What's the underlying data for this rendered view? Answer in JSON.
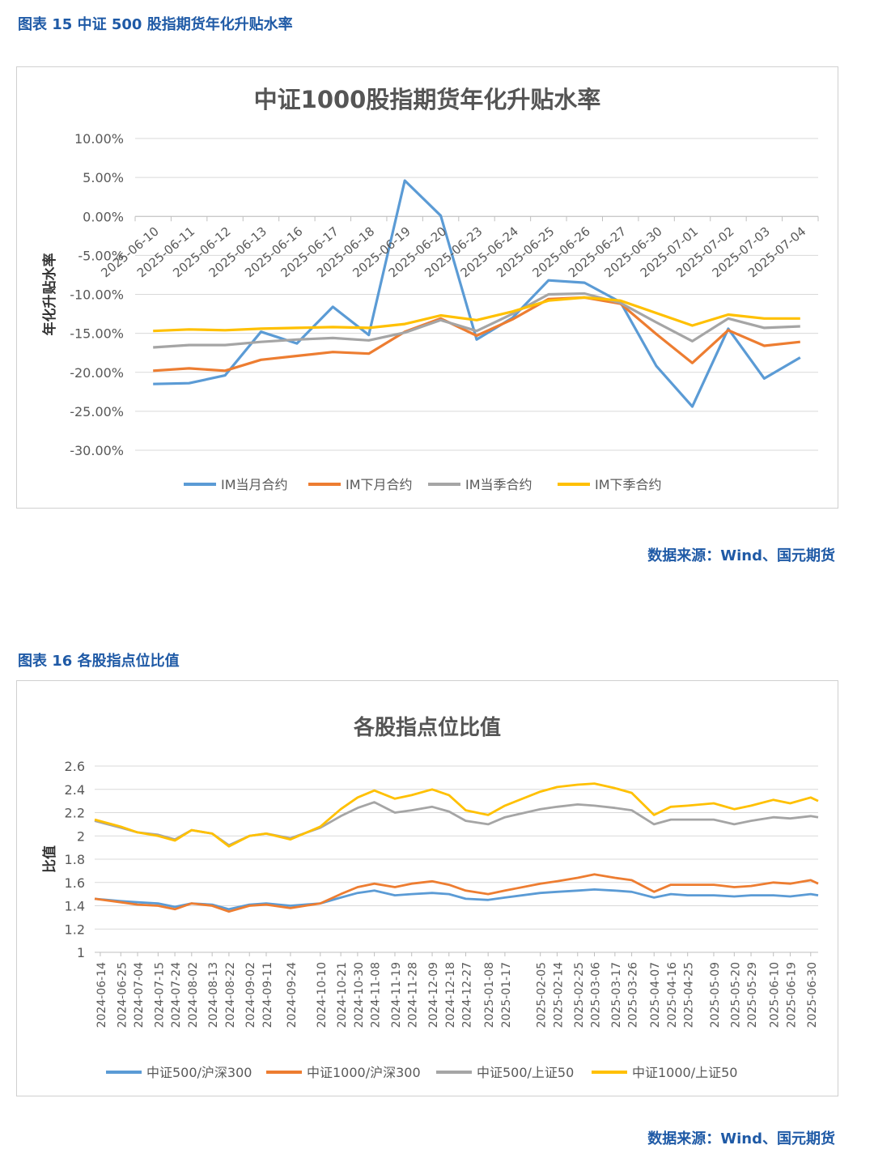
{
  "figure15": {
    "caption": "图表 15  中证 500 股指期货年化升贴水率",
    "source": "数据来源：Wind、国元期货"
  },
  "figure16": {
    "caption": "图表 16  各股指点位比值",
    "source": "数据来源：Wind、国元期货"
  },
  "chart_data": [
    {
      "type": "line",
      "title": "中证1000股指期货年化升贴水率",
      "ylabel": "年化升贴水率",
      "ylim": [
        -30,
        10
      ],
      "yticks": [
        "10.00%",
        "5.00%",
        "0.00%",
        "-5.00%",
        "-10.00%",
        "-15.00%",
        "-20.00%",
        "-25.00%",
        "-30.00%"
      ],
      "categories": [
        "2025-06-10",
        "2025-06-11",
        "2025-06-12",
        "2025-06-13",
        "2025-06-16",
        "2025-06-17",
        "2025-06-18",
        "2025-06-19",
        "2025-06-20",
        "2025-06-23",
        "2025-06-24",
        "2025-06-25",
        "2025-06-26",
        "2025-06-27",
        "2025-06-30",
        "2025-07-01",
        "2025-07-02",
        "2025-07-03",
        "2025-07-04"
      ],
      "legend_position": "bottom",
      "grid": true,
      "series": [
        {
          "name": "IM当月合约",
          "color": "#5b9bd5",
          "values": [
            -21.5,
            -21.4,
            -20.4,
            -14.8,
            -16.3,
            -11.6,
            -15.2,
            4.6,
            0.1,
            -15.8,
            -13.0,
            -8.2,
            -8.5,
            -11.0,
            -19.2,
            -24.4,
            -14.4,
            -20.8,
            -18.1
          ]
        },
        {
          "name": "IM下月合约",
          "color": "#ed7d31",
          "values": [
            -19.8,
            -19.5,
            -19.8,
            -18.4,
            -17.9,
            -17.4,
            -17.6,
            -14.8,
            -13.1,
            -15.3,
            -13.2,
            -10.6,
            -10.4,
            -11.2,
            -15.1,
            -18.8,
            -14.6,
            -16.6,
            -16.1
          ]
        },
        {
          "name": "IM当季合约",
          "color": "#a5a5a5",
          "values": [
            -16.8,
            -16.5,
            -16.5,
            -16.1,
            -15.8,
            -15.6,
            -15.9,
            -14.9,
            -13.3,
            -14.7,
            -12.5,
            -10.0,
            -9.9,
            -11.1,
            -13.6,
            -16.0,
            -13.1,
            -14.3,
            -14.1
          ]
        },
        {
          "name": "IM下季合约",
          "color": "#ffc000",
          "values": [
            -14.7,
            -14.5,
            -14.6,
            -14.4,
            -14.3,
            -14.2,
            -14.3,
            -13.8,
            -12.7,
            -13.3,
            -12.2,
            -10.8,
            -10.4,
            -10.8,
            -12.4,
            -14.0,
            -12.6,
            -13.1,
            -13.1
          ]
        }
      ]
    },
    {
      "type": "line",
      "title": "各股指点位比值",
      "ylabel": "比值",
      "ylim": [
        1,
        2.6
      ],
      "yticks": [
        "2.6",
        "2.4",
        "2.2",
        "2",
        "1.8",
        "1.6",
        "1.4",
        "1.2",
        "1"
      ],
      "x_start": "2024-06-11",
      "x_end": "2025-07-04",
      "xticks": [
        "2024-06-14",
        "2024-06-25",
        "2024-07-04",
        "2024-07-15",
        "2024-07-24",
        "2024-08-02",
        "2024-08-13",
        "2024-08-22",
        "2024-09-02",
        "2024-09-11",
        "2024-09-24",
        "2024-10-10",
        "2024-10-21",
        "2024-10-30",
        "2024-11-08",
        "2024-11-19",
        "2024-11-28",
        "2024-12-09",
        "2024-12-18",
        "2024-12-27",
        "2025-01-08",
        "2025-01-17",
        "2025-02-05",
        "2025-02-14",
        "2025-02-25",
        "2025-03-06",
        "2025-03-17",
        "2025-03-26",
        "2025-04-07",
        "2025-04-16",
        "2025-04-25",
        "2025-05-09",
        "2025-05-20",
        "2025-05-29",
        "2025-06-10",
        "2025-06-19",
        "2025-06-30"
      ],
      "legend_position": "bottom",
      "grid": true,
      "series": [
        {
          "name": "中证500/沪深300",
          "color": "#5b9bd5",
          "x": [
            "2024-06-11",
            "2024-06-25",
            "2024-07-04",
            "2024-07-15",
            "2024-07-24",
            "2024-08-02",
            "2024-08-13",
            "2024-08-22",
            "2024-09-02",
            "2024-09-11",
            "2024-09-24",
            "2024-10-10",
            "2024-10-21",
            "2024-10-30",
            "2024-11-08",
            "2024-11-19",
            "2024-11-28",
            "2024-12-09",
            "2024-12-18",
            "2024-12-27",
            "2025-01-08",
            "2025-01-17",
            "2025-02-05",
            "2025-02-14",
            "2025-02-25",
            "2025-03-06",
            "2025-03-17",
            "2025-03-26",
            "2025-04-07",
            "2025-04-16",
            "2025-04-25",
            "2025-05-09",
            "2025-05-20",
            "2025-05-29",
            "2025-06-10",
            "2025-06-19",
            "2025-06-30",
            "2025-07-04"
          ],
          "values": [
            1.46,
            1.44,
            1.43,
            1.42,
            1.39,
            1.42,
            1.41,
            1.37,
            1.41,
            1.42,
            1.4,
            1.42,
            1.47,
            1.51,
            1.53,
            1.49,
            1.5,
            1.51,
            1.5,
            1.46,
            1.45,
            1.47,
            1.51,
            1.52,
            1.53,
            1.54,
            1.53,
            1.52,
            1.47,
            1.5,
            1.49,
            1.49,
            1.48,
            1.49,
            1.49,
            1.48,
            1.5,
            1.49
          ]
        },
        {
          "name": "中证1000/沪深300",
          "color": "#ed7d31",
          "x": [
            "2024-06-11",
            "2024-06-25",
            "2024-07-04",
            "2024-07-15",
            "2024-07-24",
            "2024-08-02",
            "2024-08-13",
            "2024-08-22",
            "2024-09-02",
            "2024-09-11",
            "2024-09-24",
            "2024-10-10",
            "2024-10-21",
            "2024-10-30",
            "2024-11-08",
            "2024-11-19",
            "2024-11-28",
            "2024-12-09",
            "2024-12-18",
            "2024-12-27",
            "2025-01-08",
            "2025-01-17",
            "2025-02-05",
            "2025-02-14",
            "2025-02-25",
            "2025-03-06",
            "2025-03-17",
            "2025-03-26",
            "2025-04-07",
            "2025-04-16",
            "2025-04-25",
            "2025-05-09",
            "2025-05-20",
            "2025-05-29",
            "2025-06-10",
            "2025-06-19",
            "2025-06-30",
            "2025-07-04"
          ],
          "values": [
            1.46,
            1.43,
            1.41,
            1.4,
            1.37,
            1.42,
            1.4,
            1.35,
            1.4,
            1.41,
            1.38,
            1.42,
            1.5,
            1.56,
            1.59,
            1.56,
            1.59,
            1.61,
            1.58,
            1.53,
            1.5,
            1.53,
            1.59,
            1.61,
            1.64,
            1.67,
            1.64,
            1.62,
            1.52,
            1.58,
            1.58,
            1.58,
            1.56,
            1.57,
            1.6,
            1.59,
            1.62,
            1.59
          ]
        },
        {
          "name": "中证500/上证50",
          "color": "#a5a5a5",
          "x": [
            "2024-06-11",
            "2024-06-25",
            "2024-07-04",
            "2024-07-15",
            "2024-07-24",
            "2024-08-02",
            "2024-08-13",
            "2024-08-22",
            "2024-09-02",
            "2024-09-11",
            "2024-09-24",
            "2024-10-10",
            "2024-10-21",
            "2024-10-30",
            "2024-11-08",
            "2024-11-19",
            "2024-11-28",
            "2024-12-09",
            "2024-12-18",
            "2024-12-27",
            "2025-01-08",
            "2025-01-17",
            "2025-02-05",
            "2025-02-14",
            "2025-02-25",
            "2025-03-06",
            "2025-03-17",
            "2025-03-26",
            "2025-04-07",
            "2025-04-16",
            "2025-04-25",
            "2025-05-09",
            "2025-05-20",
            "2025-05-29",
            "2025-06-10",
            "2025-06-19",
            "2025-06-30",
            "2025-07-04"
          ],
          "values": [
            2.13,
            2.07,
            2.03,
            2.01,
            1.97,
            2.05,
            2.02,
            1.92,
            2.0,
            2.02,
            1.98,
            2.07,
            2.17,
            2.24,
            2.29,
            2.2,
            2.22,
            2.25,
            2.21,
            2.13,
            2.1,
            2.16,
            2.23,
            2.25,
            2.27,
            2.26,
            2.24,
            2.22,
            2.1,
            2.14,
            2.14,
            2.14,
            2.1,
            2.13,
            2.16,
            2.15,
            2.17,
            2.16
          ]
        },
        {
          "name": "中证1000/上证50",
          "color": "#ffc000",
          "x": [
            "2024-06-11",
            "2024-06-25",
            "2024-07-04",
            "2024-07-15",
            "2024-07-24",
            "2024-08-02",
            "2024-08-13",
            "2024-08-22",
            "2024-09-02",
            "2024-09-11",
            "2024-09-24",
            "2024-10-10",
            "2024-10-21",
            "2024-10-30",
            "2024-11-08",
            "2024-11-19",
            "2024-11-28",
            "2024-12-09",
            "2024-12-18",
            "2024-12-27",
            "2025-01-08",
            "2025-01-17",
            "2025-02-05",
            "2025-02-14",
            "2025-02-25",
            "2025-03-06",
            "2025-03-17",
            "2025-03-26",
            "2025-04-07",
            "2025-04-16",
            "2025-04-25",
            "2025-05-09",
            "2025-05-20",
            "2025-05-29",
            "2025-06-10",
            "2025-06-19",
            "2025-06-30",
            "2025-07-04"
          ],
          "values": [
            2.14,
            2.08,
            2.03,
            2.0,
            1.96,
            2.05,
            2.02,
            1.91,
            2.0,
            2.02,
            1.97,
            2.08,
            2.23,
            2.33,
            2.39,
            2.32,
            2.35,
            2.4,
            2.35,
            2.22,
            2.18,
            2.26,
            2.38,
            2.42,
            2.44,
            2.45,
            2.41,
            2.37,
            2.18,
            2.25,
            2.26,
            2.28,
            2.23,
            2.26,
            2.31,
            2.28,
            2.33,
            2.3
          ]
        }
      ]
    }
  ]
}
